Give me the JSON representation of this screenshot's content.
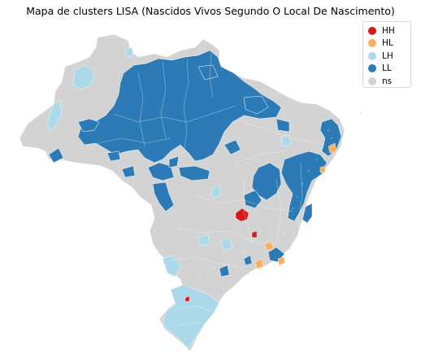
{
  "title": "Mapa de clusters LISA (Nascidos Vivos Segundo O Local De Nascimento)",
  "legend": [
    {
      "label": "HH",
      "color": "#d7191c"
    },
    {
      "label": "HL",
      "color": "#fdae61"
    },
    {
      "label": "LH",
      "color": "#abd9e9"
    },
    {
      "label": "LL",
      "color": "#2c7bb6"
    },
    {
      "label": "ns",
      "color": "#d3d3d3"
    }
  ],
  "colors": {
    "background": "#ffffff",
    "land": "#d3d3d3",
    "borders": "#ffffff"
  }
}
